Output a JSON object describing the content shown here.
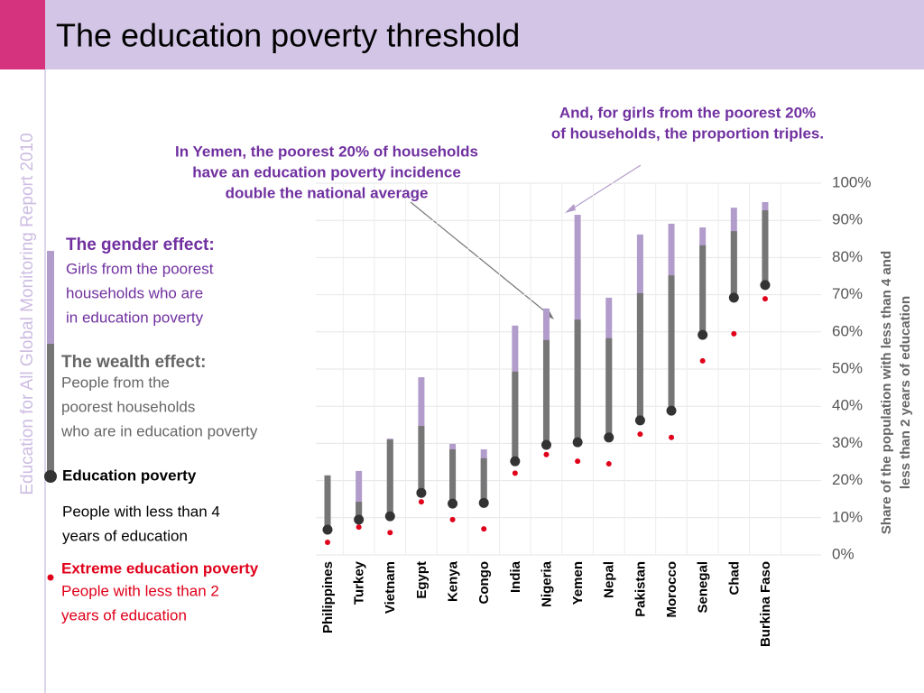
{
  "slide": {
    "title": "The education poverty threshold",
    "sidebar": "Education for All Global Monitoring Report 2010"
  },
  "chart_data": {
    "type": "range",
    "y_axis_label": [
      "Share of the population with less than 4 and",
      "less than 2 years of education"
    ],
    "annotations": [
      {
        "lines": [
          "And, for girls from the poorest 20%",
          "of households, the proportion triples."
        ]
      },
      {
        "lines": [
          "In Yemen, the poorest 20% of households",
          "have an education poverty incidence",
          "double the national average"
        ]
      }
    ],
    "categories": [
      "Philippines",
      "Turkey",
      "Vietnam",
      "Egypt",
      "Kenya",
      "Congo",
      "India",
      "Nigeria",
      "Yemen",
      "Nepal",
      "Pakistan",
      "Morocco",
      "Senegal",
      "Chad",
      "Burkina Faso"
    ],
    "series": [
      {
        "name": "The gender effect:",
        "description": [
          "Girls from the poorest",
          "households who are",
          "in education poverty"
        ],
        "color": "#b29ccb",
        "values": [
          21.4,
          22.6,
          31.3,
          47.8,
          29.9,
          28.4,
          61.7,
          66.3,
          91.5,
          69.2,
          86.2,
          89.1,
          88.1,
          93.4,
          94.9
        ]
      },
      {
        "name": "The wealth effect:",
        "description": [
          "People from the",
          "poorest households",
          "who are in education poverty"
        ],
        "color": "#767676",
        "values": [
          21.4,
          14.3,
          31,
          34.7,
          28.4,
          26,
          49.3,
          57.8,
          63.3,
          58.3,
          70.4,
          75.2,
          83.3,
          87.1,
          92.7
        ]
      },
      {
        "name": "Education poverty",
        "description": [
          "People with less than 4",
          "years of education"
        ],
        "color": "#333333",
        "values": [
          6.8,
          9.5,
          10.4,
          16.7,
          13.8,
          14,
          25.2,
          29.6,
          30.3,
          31.6,
          36.2,
          38.8,
          59.2,
          69.2,
          72.6
        ]
      },
      {
        "name": "Extreme education poverty",
        "description": [
          "People with less than 2",
          "years of education"
        ],
        "color": "#e0001a",
        "values": [
          3.4,
          7.5,
          6,
          14.3,
          9.5,
          7,
          22,
          27,
          25.2,
          24.5,
          32.5,
          31.6,
          52.2,
          59.5,
          68.9
        ]
      }
    ],
    "ylim": [
      0,
      100
    ],
    "yticks": [
      {
        "value": 0,
        "label": "0%"
      },
      {
        "value": 10,
        "label": "10%"
      },
      {
        "value": 20,
        "label": "20%"
      },
      {
        "value": 30,
        "label": "30%"
      },
      {
        "value": 40,
        "label": "40%"
      },
      {
        "value": 50,
        "label": "50%"
      },
      {
        "value": 60,
        "label": "60%"
      },
      {
        "value": 70,
        "label": "70%"
      },
      {
        "value": 80,
        "label": "80%"
      },
      {
        "value": 90,
        "label": "90%"
      },
      {
        "value": 100,
        "label": "100%"
      }
    ],
    "grid": true
  }
}
